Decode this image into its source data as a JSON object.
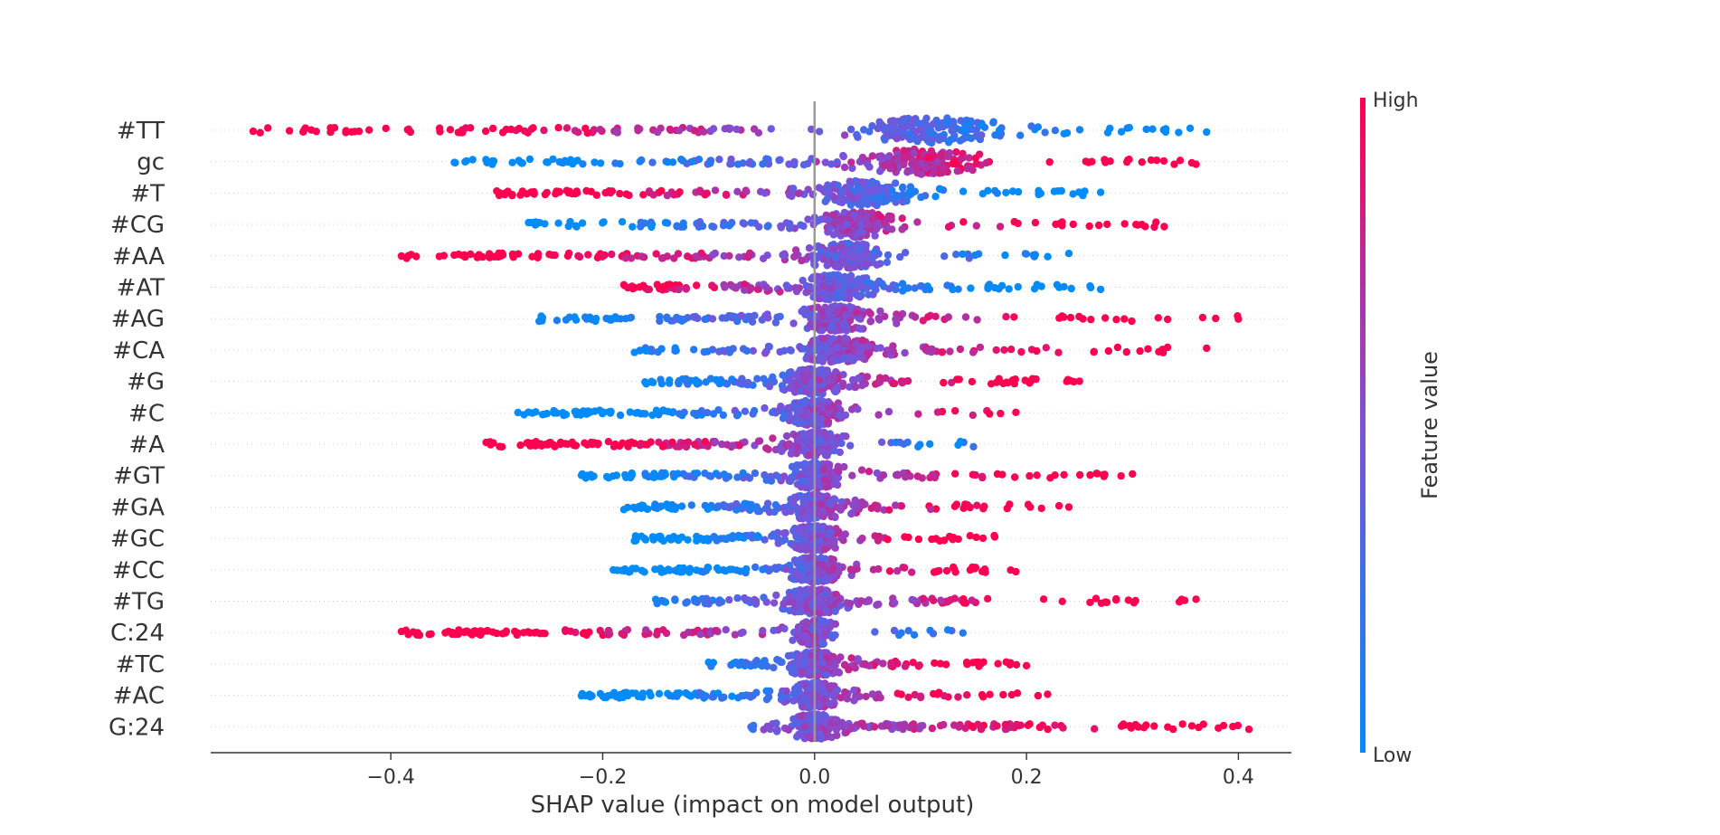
{
  "chart_data": {
    "type": "scatter",
    "subtype": "shap-beeswarm",
    "xlabel": "SHAP value (impact on model output)",
    "xlim": [
      -0.57,
      0.45
    ],
    "xticks": [
      -0.4,
      -0.2,
      0.0,
      0.2,
      0.4
    ],
    "xtick_labels": [
      "−0.4",
      "−0.2",
      "0.0",
      "0.2",
      "0.4"
    ],
    "grid": false,
    "colorbar": {
      "label": "Feature value",
      "high_label": "High",
      "low_label": "Low",
      "low_color": "#008bfb",
      "mid_color": "#7c52d8",
      "high_color": "#ff0051"
    },
    "features": [
      {
        "name": "#TT",
        "min": -0.53,
        "max": 0.37,
        "low_side": "positive",
        "density_center": 0.11,
        "spread": 0.14
      },
      {
        "name": "gc",
        "min": -0.34,
        "max": 0.36,
        "low_side": "negative",
        "density_center": 0.1,
        "spread": 0.12
      },
      {
        "name": "#T",
        "min": -0.3,
        "max": 0.27,
        "low_side": "positive",
        "density_center": 0.05,
        "spread": 0.09
      },
      {
        "name": "#CG",
        "min": -0.27,
        "max": 0.33,
        "low_side": "negative",
        "density_center": 0.04,
        "spread": 0.07
      },
      {
        "name": "#AA",
        "min": -0.39,
        "max": 0.24,
        "low_side": "positive",
        "density_center": 0.03,
        "spread": 0.08
      },
      {
        "name": "#AT",
        "min": -0.18,
        "max": 0.27,
        "low_side": "positive",
        "density_center": 0.02,
        "spread": 0.07
      },
      {
        "name": "#AG",
        "min": -0.26,
        "max": 0.4,
        "low_side": "negative",
        "density_center": 0.02,
        "spread": 0.08
      },
      {
        "name": "#CA",
        "min": -0.17,
        "max": 0.37,
        "low_side": "negative",
        "density_center": 0.02,
        "spread": 0.07
      },
      {
        "name": "#G",
        "min": -0.16,
        "max": 0.25,
        "low_side": "negative",
        "density_center": 0.0,
        "spread": 0.06
      },
      {
        "name": "#C",
        "min": -0.28,
        "max": 0.19,
        "low_side": "negative",
        "density_center": 0.0,
        "spread": 0.06
      },
      {
        "name": "#A",
        "min": -0.31,
        "max": 0.15,
        "low_side": "positive",
        "density_center": 0.0,
        "spread": 0.06
      },
      {
        "name": "#GT",
        "min": -0.22,
        "max": 0.3,
        "low_side": "negative",
        "density_center": 0.0,
        "spread": 0.06
      },
      {
        "name": "#GA",
        "min": -0.18,
        "max": 0.24,
        "low_side": "negative",
        "density_center": 0.0,
        "spread": 0.06
      },
      {
        "name": "#GC",
        "min": -0.17,
        "max": 0.17,
        "low_side": "negative",
        "density_center": 0.0,
        "spread": 0.05
      },
      {
        "name": "#CC",
        "min": -0.19,
        "max": 0.19,
        "low_side": "negative",
        "density_center": 0.0,
        "spread": 0.05
      },
      {
        "name": "#TG",
        "min": -0.15,
        "max": 0.36,
        "low_side": "negative",
        "density_center": 0.0,
        "spread": 0.06
      },
      {
        "name": "C:24",
        "min": -0.39,
        "max": 0.14,
        "low_side": "positive",
        "density_center": 0.0,
        "spread": 0.04
      },
      {
        "name": "#TC",
        "min": -0.1,
        "max": 0.2,
        "low_side": "negative",
        "density_center": 0.0,
        "spread": 0.05
      },
      {
        "name": "#AC",
        "min": -0.22,
        "max": 0.22,
        "low_side": "negative",
        "density_center": 0.0,
        "spread": 0.05
      },
      {
        "name": "G:24",
        "min": -0.06,
        "max": 0.41,
        "low_side": "negative",
        "density_center": 0.0,
        "spread": 0.05
      }
    ]
  }
}
